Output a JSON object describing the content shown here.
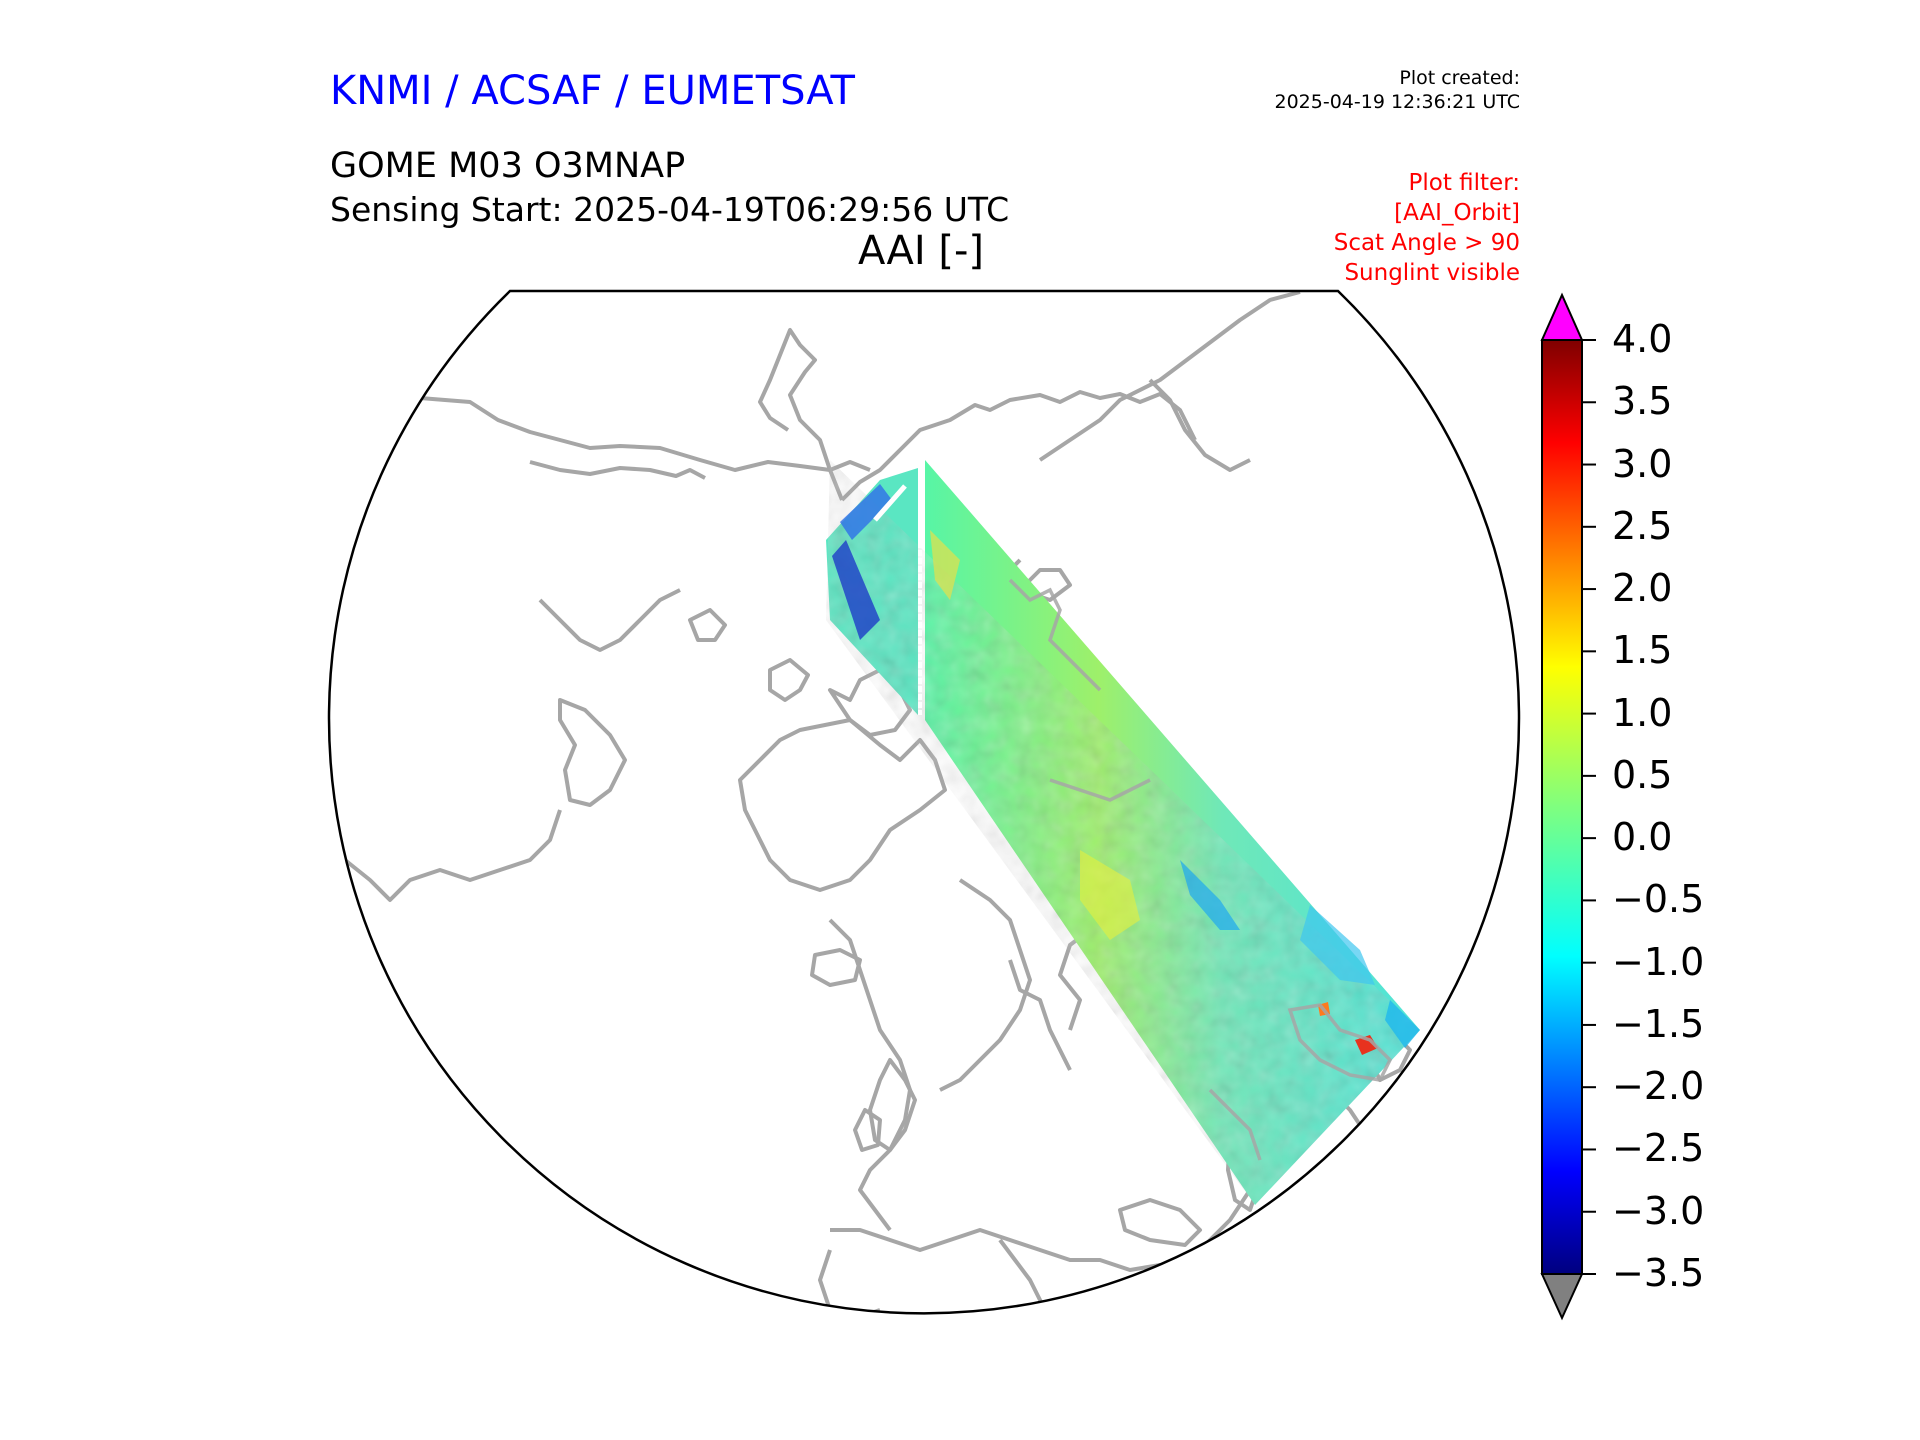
{
  "header": {
    "organisation": "KNMI / ACSAF / EUMETSAT",
    "plot_created_label": "Plot created:",
    "plot_created_time": "2025-04-19 12:36:21 UTC",
    "product": "GOME M03 O3MNAP",
    "sensing_start": "Sensing Start: 2025-04-19T06:29:56 UTC",
    "map_title": "AAI [-]"
  },
  "filter": {
    "heading": "Plot filter:",
    "lines": [
      "[AAI_Orbit]",
      "Scat Angle > 90",
      "Sunglint visible"
    ]
  },
  "colorbar": {
    "variable": "AAI",
    "unit": "-",
    "min": -3.5,
    "max": 4.0,
    "ticks": [
      "4.0",
      "3.5",
      "3.0",
      "2.5",
      "2.0",
      "1.5",
      "1.0",
      "0.5",
      "0.0",
      "−0.5",
      "−1.0",
      "−1.5",
      "−2.0",
      "−2.5",
      "−3.0",
      "−3.5"
    ],
    "over_color": "#ff00ff",
    "under_color": "#808080",
    "colormap": "jet"
  },
  "map": {
    "projection": "north-polar-stereographic",
    "coastline_color": "#a6a6a6",
    "background_color": "#ffffff",
    "swath_typical_aai": 0.0
  }
}
